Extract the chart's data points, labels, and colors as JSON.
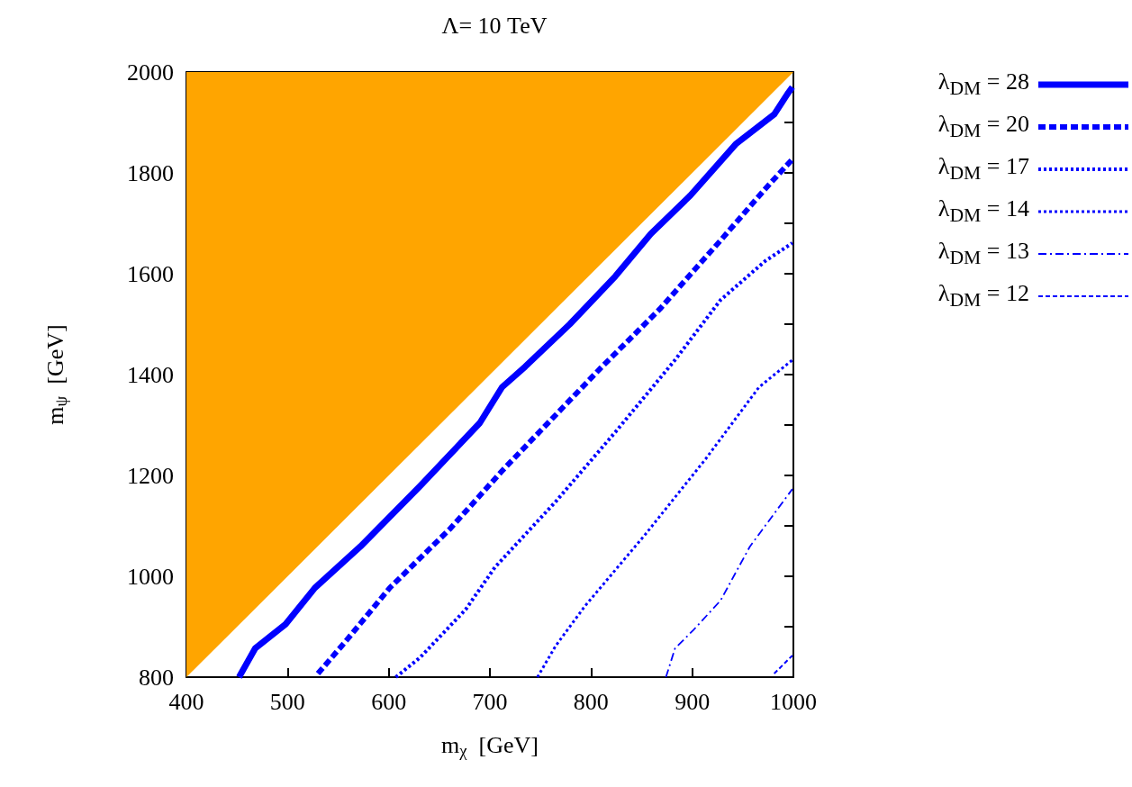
{
  "chart_data": {
    "type": "line",
    "title": "Λ= 10 TeV",
    "xlabel": "m$_{χ}$  [GeV]",
    "ylabel": "m$_{ψ}$  [GeV]",
    "xlim": [
      400,
      1000
    ],
    "xticks": [
      400,
      500,
      600,
      700,
      800,
      900,
      1000
    ],
    "ylim": [
      800,
      2000
    ],
    "yticks": [
      800,
      {
        "value": 900,
        "label": null
      },
      1000,
      {
        "value": 1100,
        "label": null
      },
      1200,
      {
        "value": 1300,
        "label": null
      },
      1400,
      {
        "value": 1500,
        "label": null
      },
      1600,
      {
        "value": 1700,
        "label": null
      },
      1800,
      {
        "value": 1900,
        "label": null
      },
      2000
    ],
    "grid": false,
    "legend": "top right",
    "marker": "none",
    "series": [
      {
        "type": "area",
        "color": "#ffa500",
        "x": [
          400,
          1000
        ],
        "values": [
          800,
          2000
        ]
      },
      {
        "name": "λ$_{DM}$ = 28",
        "color": "#0000ff",
        "line_style": "solid",
        "x": [
          452,
          468,
          498,
          527,
          572,
          631,
          690,
          712,
          735,
          779,
          824,
          859,
          898,
          943,
          981,
          995,
          999
        ],
        "values": [
          800,
          857,
          905,
          977,
          1059,
          1179,
          1304,
          1375,
          1416,
          1500,
          1595,
          1679,
          1755,
          1857,
          1916,
          1959,
          1970
        ]
      },
      {
        "name": "λ$_{DM}$ = 20",
        "color": "#0000ff",
        "line_style": "dashed",
        "x": [
          530,
          557,
          601,
          661,
          712,
          810,
          868,
          928,
          972,
          999
        ],
        "values": [
          807,
          870,
          977,
          1095,
          1209,
          1414,
          1530,
          1666,
          1768,
          1827
        ]
      },
      {
        "name": "λ$_{DM}$ = 17",
        "color": "#0000ff",
        "line_style": "dotted",
        "x": [
          607,
          631,
          676,
          705,
          765,
          824,
          883,
          928,
          972,
          999
        ],
        "values": [
          800,
          839,
          934,
          1018,
          1148,
          1286,
          1429,
          1548,
          1625,
          1661
        ]
      },
      {
        "name": "λ$_{DM}$ = 14",
        "color": "#0000ff",
        "line_style": "dotted",
        "x": [
          747,
          765,
          794,
          854,
          913,
          966,
          999
        ],
        "values": [
          800,
          862,
          941,
          1084,
          1232,
          1375,
          1429
        ]
      },
      {
        "name": "λ$_{DM}$ = 13",
        "color": "#0000ff",
        "line_style": "dashed",
        "x": [
          874,
          883,
          901,
          928,
          957,
          999
        ],
        "values": [
          800,
          857,
          893,
          952,
          1059,
          1173
        ]
      },
      {
        "name": "λ$_{DM}$ = 12",
        "color": "#0000ff",
        "line_style": "dashed",
        "x": [
          981,
          999
        ],
        "values": [
          807,
          843
        ]
      }
    ]
  }
}
